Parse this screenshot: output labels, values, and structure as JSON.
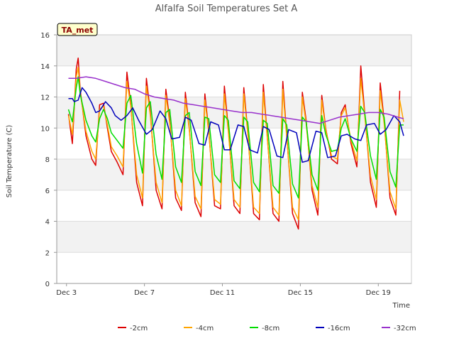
{
  "chart_data": {
    "type": "line",
    "title": "Alfalfa Soil Temperatures Set A",
    "xlabel": "Time",
    "ylabel": "Soil Temperature (C)",
    "badge": "TA_met",
    "xlim": [
      2.5,
      20.7
    ],
    "ylim": [
      0,
      16
    ],
    "y_ticks": [
      0,
      2,
      4,
      6,
      8,
      10,
      12,
      14,
      16
    ],
    "x_ticks": [
      {
        "value": 3,
        "label": "Dec 3"
      },
      {
        "value": 7,
        "label": "Dec 7"
      },
      {
        "value": 11,
        "label": "Dec 11"
      },
      {
        "value": 15,
        "label": "Dec 15"
      },
      {
        "value": 19,
        "label": "Dec 19"
      }
    ],
    "grid": true,
    "band_fill": "#f2f2f2",
    "legend_position": "bottom",
    "series": [
      {
        "name": "-2cm",
        "color": "#dd0000",
        "x": [
          3.1,
          3.3,
          3.5,
          3.6,
          3.7,
          4.0,
          4.3,
          4.5,
          4.7,
          4.9,
          5.1,
          5.3,
          5.6,
          5.9,
          6.1,
          6.3,
          6.6,
          6.9,
          7.1,
          7.3,
          7.6,
          7.9,
          8.1,
          8.3,
          8.6,
          8.9,
          9.1,
          9.3,
          9.6,
          9.9,
          10.1,
          10.3,
          10.6,
          10.9,
          11.1,
          11.3,
          11.6,
          11.9,
          12.1,
          12.3,
          12.6,
          12.9,
          13.1,
          13.3,
          13.6,
          13.9,
          14.1,
          14.3,
          14.6,
          14.9,
          15.1,
          15.3,
          15.6,
          15.9,
          16.1,
          16.3,
          16.6,
          16.9,
          17.1,
          17.3,
          17.6,
          17.9,
          18.1,
          18.3,
          18.6,
          18.9,
          19.1,
          19.3,
          19.6,
          19.9,
          20.1
        ],
        "values": [
          10.9,
          9.0,
          13.8,
          14.5,
          12.5,
          9.5,
          8.0,
          7.6,
          11.5,
          11.6,
          10.0,
          8.5,
          7.8,
          7.0,
          13.6,
          11.5,
          6.5,
          5.0,
          13.2,
          11.0,
          6.0,
          4.8,
          12.5,
          10.5,
          5.5,
          4.7,
          12.3,
          10.0,
          5.2,
          4.3,
          12.2,
          9.8,
          5.0,
          4.8,
          12.7,
          10.0,
          5.0,
          4.5,
          12.6,
          9.8,
          4.5,
          4.1,
          12.8,
          9.5,
          4.5,
          4.0,
          13.0,
          9.5,
          4.5,
          3.5,
          12.3,
          10.5,
          6.0,
          4.4,
          12.1,
          10.0,
          8.0,
          7.7,
          11.0,
          11.5,
          9.0,
          7.5,
          14.0,
          11.0,
          6.5,
          4.9,
          12.9,
          10.5,
          5.5,
          4.4,
          12.4
        ]
      },
      {
        "name": "-4cm",
        "color": "#ffa500",
        "x": [
          3.1,
          3.3,
          3.5,
          3.6,
          3.7,
          4.0,
          4.3,
          4.5,
          4.7,
          4.9,
          5.1,
          5.3,
          5.6,
          5.9,
          6.1,
          6.3,
          6.6,
          6.9,
          7.1,
          7.3,
          7.6,
          7.9,
          8.1,
          8.3,
          8.6,
          8.9,
          9.1,
          9.3,
          9.6,
          9.9,
          10.1,
          10.3,
          10.6,
          10.9,
          11.1,
          11.3,
          11.6,
          11.9,
          12.1,
          12.3,
          12.6,
          12.9,
          13.1,
          13.3,
          13.6,
          13.9,
          14.1,
          14.3,
          14.6,
          14.9,
          15.1,
          15.3,
          15.6,
          15.9,
          16.1,
          16.3,
          16.6,
          16.9,
          17.1,
          17.3,
          17.6,
          17.9,
          18.1,
          18.3,
          18.6,
          18.9,
          19.1,
          19.3,
          19.6,
          19.9,
          20.1,
          20.3
        ],
        "values": [
          10.8,
          9.6,
          13.3,
          13.9,
          12.3,
          9.8,
          8.5,
          8.0,
          11.2,
          11.4,
          10.2,
          8.8,
          8.2,
          7.5,
          13.0,
          11.4,
          7.0,
          5.5,
          12.7,
          10.8,
          6.5,
          5.2,
          12.1,
          10.3,
          6.0,
          5.0,
          11.9,
          9.9,
          5.6,
          4.8,
          11.8,
          9.7,
          5.4,
          5.1,
          12.2,
          9.8,
          5.4,
          4.9,
          12.2,
          9.7,
          4.9,
          4.5,
          12.3,
          9.4,
          4.9,
          4.4,
          12.5,
          9.4,
          4.9,
          4.1,
          12.0,
          10.3,
          6.3,
          4.9,
          11.8,
          9.9,
          8.2,
          8.0,
          10.8,
          11.3,
          9.2,
          7.9,
          13.2,
          10.8,
          6.9,
          5.4,
          12.4,
          10.3,
          5.9,
          4.8,
          11.8,
          10.4
        ]
      },
      {
        "name": "-8cm",
        "color": "#00dd00",
        "x": [
          3.1,
          3.3,
          3.5,
          3.6,
          3.7,
          4.0,
          4.3,
          4.5,
          4.7,
          4.9,
          5.1,
          5.3,
          5.6,
          5.9,
          6.1,
          6.3,
          6.6,
          6.9,
          7.1,
          7.3,
          7.6,
          7.9,
          8.1,
          8.3,
          8.6,
          8.9,
          9.1,
          9.3,
          9.6,
          9.9,
          10.1,
          10.3,
          10.6,
          10.9,
          11.1,
          11.3,
          11.6,
          11.9,
          12.1,
          12.3,
          12.6,
          12.9,
          13.1,
          13.3,
          13.6,
          13.9,
          14.1,
          14.3,
          14.6,
          14.9,
          15.1,
          15.3,
          15.6,
          15.9,
          16.1,
          16.3,
          16.6,
          16.9,
          17.1,
          17.3,
          17.6,
          17.9,
          18.1,
          18.3,
          18.6,
          18.9,
          19.1,
          19.3,
          19.6,
          19.9,
          20.1,
          20.3
        ],
        "values": [
          11.2,
          10.4,
          12.6,
          13.3,
          12.2,
          10.5,
          9.5,
          9.1,
          10.6,
          11.2,
          10.6,
          9.7,
          9.2,
          8.7,
          11.6,
          12.1,
          9.0,
          7.1,
          11.3,
          11.7,
          8.3,
          6.7,
          11.0,
          11.2,
          7.5,
          6.5,
          10.8,
          11.0,
          7.2,
          6.3,
          10.7,
          10.6,
          7.0,
          6.5,
          10.8,
          10.5,
          6.6,
          6.1,
          10.7,
          10.4,
          6.5,
          5.9,
          10.5,
          10.3,
          6.3,
          5.8,
          10.6,
          10.2,
          6.4,
          5.5,
          10.7,
          10.4,
          7.0,
          6.0,
          10.8,
          9.6,
          8.5,
          8.6,
          10.0,
          10.6,
          9.3,
          8.5,
          11.4,
          11.0,
          8.2,
          6.7,
          11.2,
          10.7,
          7.2,
          6.2,
          10.2,
          10.2
        ]
      },
      {
        "name": "-16cm",
        "color": "#0000bb",
        "x": [
          3.1,
          3.3,
          3.4,
          3.6,
          3.8,
          4.0,
          4.3,
          4.5,
          4.7,
          5.0,
          5.3,
          5.5,
          5.8,
          6.1,
          6.4,
          6.7,
          7.1,
          7.4,
          7.8,
          8.1,
          8.4,
          8.8,
          9.1,
          9.4,
          9.8,
          10.1,
          10.4,
          10.8,
          11.1,
          11.4,
          11.8,
          12.1,
          12.4,
          12.8,
          13.1,
          13.4,
          13.8,
          14.1,
          14.4,
          14.8,
          15.1,
          15.4,
          15.8,
          16.1,
          16.4,
          16.8,
          17.1,
          17.4,
          17.8,
          18.1,
          18.4,
          18.8,
          19.1,
          19.4,
          19.8,
          20.1,
          20.3
        ],
        "values": [
          11.9,
          11.9,
          11.7,
          11.8,
          12.6,
          12.3,
          11.6,
          11.0,
          11.1,
          11.7,
          11.3,
          10.8,
          10.5,
          10.8,
          11.3,
          10.5,
          9.6,
          9.9,
          11.1,
          10.6,
          9.3,
          9.4,
          10.7,
          10.5,
          9.0,
          8.9,
          10.4,
          10.2,
          8.6,
          8.6,
          10.2,
          10.1,
          8.6,
          8.4,
          10.1,
          9.9,
          8.2,
          8.1,
          9.9,
          9.7,
          7.8,
          7.9,
          9.8,
          9.7,
          8.1,
          8.2,
          9.5,
          9.6,
          9.3,
          9.2,
          10.2,
          10.3,
          9.6,
          9.9,
          10.8,
          10.4,
          9.5
        ]
      },
      {
        "name": "-32cm",
        "color": "#9932cc",
        "x": [
          3.1,
          3.5,
          4.0,
          4.5,
          5.0,
          5.5,
          6.0,
          6.5,
          7.0,
          7.5,
          8.0,
          8.5,
          9.0,
          9.5,
          10.0,
          10.5,
          11.0,
          11.5,
          12.0,
          12.5,
          13.0,
          13.5,
          14.0,
          14.5,
          15.0,
          15.5,
          16.0,
          16.5,
          17.0,
          17.5,
          18.0,
          18.5,
          19.0,
          19.5,
          20.0,
          20.3
        ],
        "values": [
          13.2,
          13.2,
          13.3,
          13.2,
          13.0,
          12.8,
          12.6,
          12.5,
          12.2,
          12.0,
          11.9,
          11.8,
          11.6,
          11.5,
          11.4,
          11.3,
          11.2,
          11.1,
          11.0,
          11.0,
          10.9,
          10.8,
          10.7,
          10.6,
          10.5,
          10.4,
          10.3,
          10.5,
          10.7,
          10.8,
          10.9,
          11.0,
          11.0,
          10.9,
          10.7,
          10.6
        ]
      }
    ]
  }
}
